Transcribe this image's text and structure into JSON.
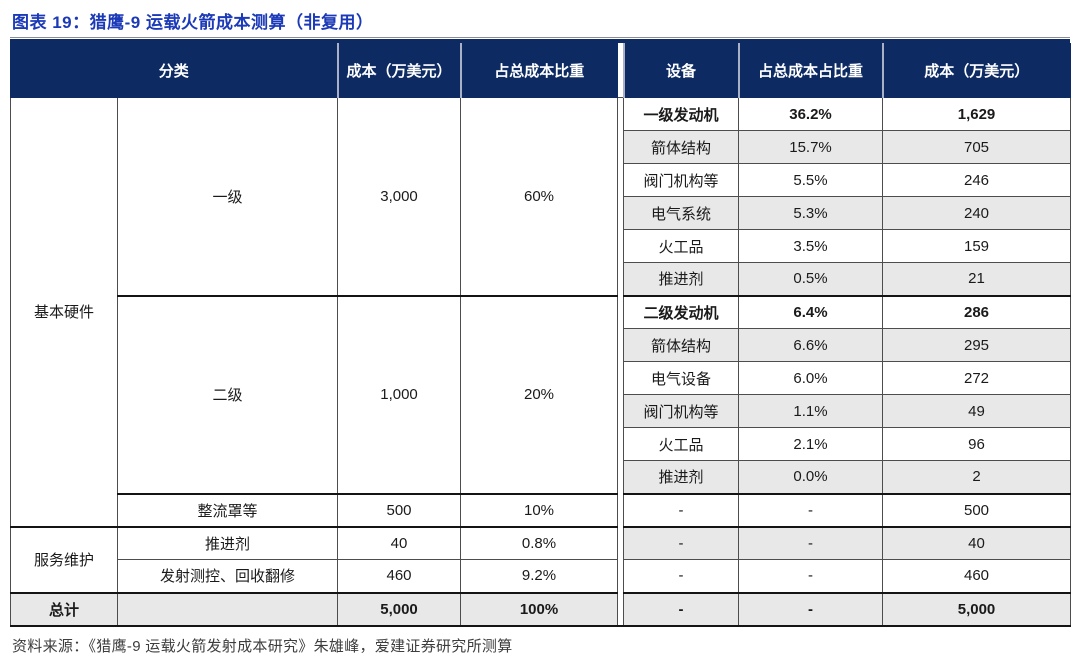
{
  "title": "图表 19：猎鹰-9 运载火箭成本测算（非复用）",
  "source": "资料来源：《猎鹰-9 运载火箭发射成本研究》朱雄峰，爱建证券研究所测算",
  "colors": {
    "header_bg": "#0D2A63",
    "title_blue": "#1C3AB8",
    "stripe_gray": "#E8E8E8",
    "grid_line": "#4D4D4D",
    "section_line": "#141414"
  },
  "table": {
    "headers": [
      {
        "label": "分类",
        "colspan": 2
      },
      {
        "label": "成本（万美元）"
      },
      {
        "label": "占总成本比重"
      },
      {
        "label": "",
        "spacer": true
      },
      {
        "label": "设备"
      },
      {
        "label": "占总成本占比重"
      },
      {
        "label": "成本（万美元）"
      }
    ],
    "rows": [
      [
        {
          "t": "基本硬件",
          "rs": 13
        },
        {
          "t": "一级",
          "rs": 6
        },
        {
          "t": "3,000",
          "rs": 6
        },
        {
          "t": "60%",
          "rs": 6
        },
        {
          "t": "",
          "rs": 16,
          "sp": 1
        },
        {
          "t": "一级发动机",
          "b": 1
        },
        {
          "t": "36.2%",
          "b": 1
        },
        {
          "t": "1,629",
          "b": 1
        }
      ],
      [
        {
          "t": "箭体结构",
          "g": 1
        },
        {
          "t": "15.7%",
          "g": 1
        },
        {
          "t": "705",
          "g": 1
        }
      ],
      [
        {
          "t": "阀门机构等"
        },
        {
          "t": "5.5%"
        },
        {
          "t": "246"
        }
      ],
      [
        {
          "t": "电气系统",
          "g": 1
        },
        {
          "t": "5.3%",
          "g": 1
        },
        {
          "t": "240",
          "g": 1
        }
      ],
      [
        {
          "t": "火工品"
        },
        {
          "t": "3.5%"
        },
        {
          "t": "159"
        }
      ],
      [
        {
          "t": "推进剂",
          "g": 1
        },
        {
          "t": "0.5%",
          "g": 1
        },
        {
          "t": "21",
          "g": 1
        }
      ],
      [
        {
          "t": "二级",
          "rs": 6,
          "tt": 1
        },
        {
          "t": "1,000",
          "rs": 6,
          "tt": 1
        },
        {
          "t": "20%",
          "rs": 6,
          "tt": 1
        },
        {
          "t": "二级发动机",
          "b": 1,
          "tt": 1
        },
        {
          "t": "6.4%",
          "b": 1,
          "tt": 1
        },
        {
          "t": "286",
          "b": 1,
          "tt": 1
        }
      ],
      [
        {
          "t": "箭体结构",
          "g": 1
        },
        {
          "t": "6.6%",
          "g": 1
        },
        {
          "t": "295",
          "g": 1
        }
      ],
      [
        {
          "t": "电气设备"
        },
        {
          "t": "6.0%"
        },
        {
          "t": "272"
        }
      ],
      [
        {
          "t": "阀门机构等",
          "g": 1
        },
        {
          "t": "1.1%",
          "g": 1
        },
        {
          "t": "49",
          "g": 1
        }
      ],
      [
        {
          "t": "火工品"
        },
        {
          "t": "2.1%"
        },
        {
          "t": "96"
        }
      ],
      [
        {
          "t": "推进剂",
          "g": 1
        },
        {
          "t": "0.0%",
          "g": 1
        },
        {
          "t": "2",
          "g": 1
        }
      ],
      [
        {
          "t": "整流罩等",
          "tt": 1
        },
        {
          "t": "500",
          "tt": 1
        },
        {
          "t": "10%",
          "tt": 1
        },
        {
          "t": "-",
          "tt": 1
        },
        {
          "t": "-",
          "tt": 1
        },
        {
          "t": "500",
          "tt": 1
        }
      ],
      [
        {
          "t": "服务维护",
          "rs": 2,
          "tt": 1
        },
        {
          "t": "推进剂",
          "tt": 1
        },
        {
          "t": "40",
          "tt": 1
        },
        {
          "t": "0.8%",
          "tt": 1
        },
        {
          "t": "-",
          "g": 1,
          "tt": 1
        },
        {
          "t": "-",
          "g": 1,
          "tt": 1
        },
        {
          "t": "40",
          "g": 1,
          "tt": 1
        }
      ],
      [
        {
          "t": "发射测控、回收翻修"
        },
        {
          "t": "460"
        },
        {
          "t": "9.2%"
        },
        {
          "t": "-"
        },
        {
          "t": "-"
        },
        {
          "t": "460"
        }
      ],
      [
        {
          "t": "总计",
          "b": 1,
          "g": 1,
          "tt": 1
        },
        {
          "t": "",
          "g": 1,
          "tt": 1
        },
        {
          "t": "5,000",
          "b": 1,
          "g": 1,
          "tt": 1
        },
        {
          "t": "100%",
          "b": 1,
          "g": 1,
          "tt": 1
        },
        {
          "t": "-",
          "b": 1,
          "g": 1,
          "tt": 1
        },
        {
          "t": "-",
          "b": 1,
          "g": 1,
          "tt": 1
        },
        {
          "t": "5,000",
          "b": 1,
          "g": 1,
          "tt": 1
        }
      ]
    ]
  }
}
